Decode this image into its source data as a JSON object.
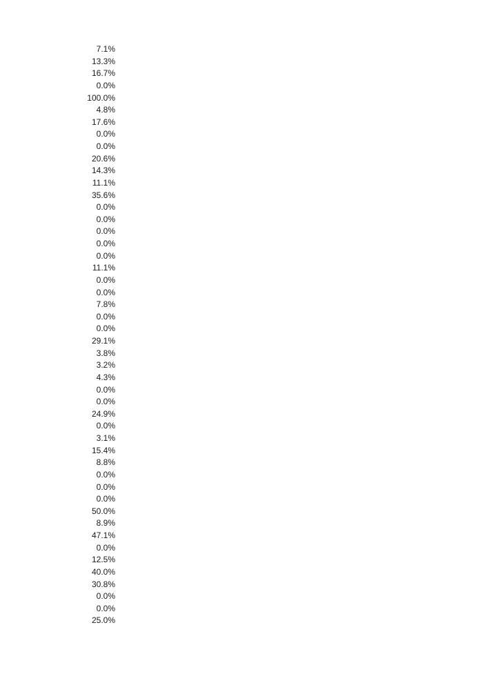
{
  "values": [
    "7.1%",
    "13.3%",
    "16.7%",
    "0.0%",
    "100.0%",
    "4.8%",
    "17.6%",
    "0.0%",
    "0.0%",
    "20.6%",
    "14.3%",
    "11.1%",
    "35.6%",
    "0.0%",
    "0.0%",
    "0.0%",
    "0.0%",
    "0.0%",
    "11.1%",
    "0.0%",
    "0.0%",
    "7.8%",
    "0.0%",
    "0.0%",
    "29.1%",
    "3.8%",
    "3.2%",
    "4.3%",
    "0.0%",
    "0.0%",
    "24.9%",
    "0.0%",
    "3.1%",
    "15.4%",
    "8.8%",
    "0.0%",
    "0.0%",
    "0.0%",
    "50.0%",
    "8.9%",
    "47.1%",
    "0.0%",
    "12.5%",
    "40.0%",
    "30.8%",
    "0.0%",
    "0.0%",
    "25.0%"
  ]
}
